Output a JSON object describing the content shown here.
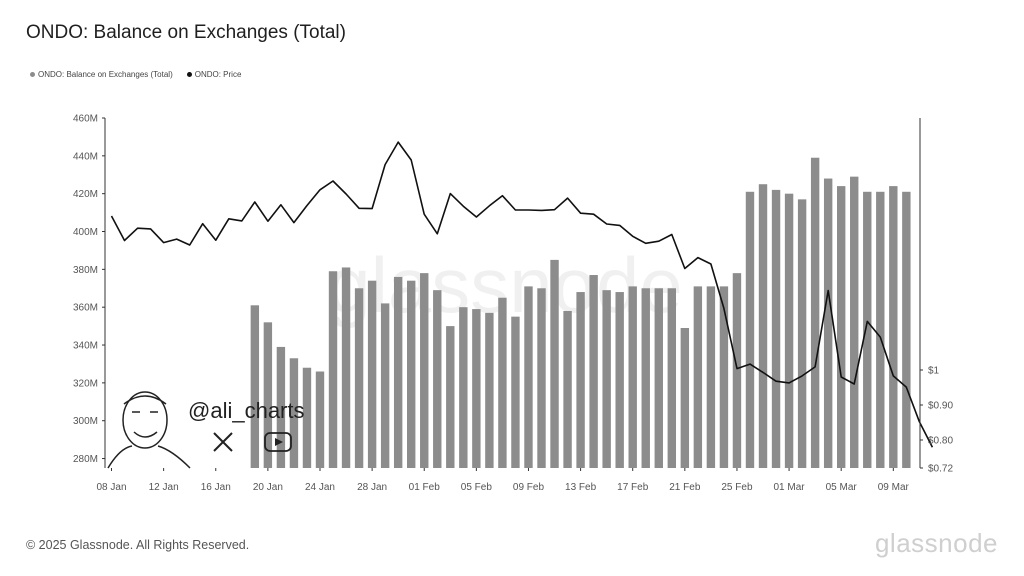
{
  "title": "ONDO: Balance on Exchanges (Total)",
  "legend": [
    {
      "label": "ONDO: Balance on Exchanges (Total)",
      "color": "#8c8c8c"
    },
    {
      "label": "ONDO: Price",
      "color": "#111111"
    }
  ],
  "watermark": "glassnode",
  "overlay": {
    "handle": "@ali_charts",
    "icons": [
      "x-logo-icon",
      "youtube-icon",
      "avatar-cartoon"
    ]
  },
  "footer": {
    "copyright": "© 2025 Glassnode. All Rights Reserved.",
    "brand": "glassnode"
  },
  "chart_data": {
    "type": "bar",
    "x_tick_labels": [
      "08 Jan",
      "12 Jan",
      "16 Jan",
      "20 Jan",
      "24 Jan",
      "28 Jan",
      "01 Feb",
      "05 Feb",
      "09 Feb",
      "13 Feb",
      "17 Feb",
      "21 Feb",
      "25 Feb",
      "01 Mar",
      "05 Mar",
      "09 Mar"
    ],
    "left_axis": {
      "ticks": [
        "280M",
        "300M",
        "320M",
        "340M",
        "360M",
        "380M",
        "400M",
        "420M",
        "440M",
        "460M"
      ],
      "range": [
        275,
        460
      ]
    },
    "right_axis": {
      "ticks": [
        "$0.72",
        "$0.80",
        "$0.90",
        "$1"
      ],
      "range": [
        0.72,
        1.72
      ]
    },
    "series": [
      {
        "name": "ONDO: Balance on Exchanges (Total)",
        "kind": "bar",
        "color": "#8c8c8c",
        "start_day": 19,
        "values": [
          361,
          352,
          339,
          333,
          328,
          326,
          379,
          381,
          370,
          374,
          362,
          376,
          374,
          378,
          369,
          350,
          360,
          359,
          357,
          365,
          355,
          371,
          370,
          385,
          358,
          368,
          377,
          369,
          368,
          371,
          370,
          370,
          370,
          349,
          371,
          371,
          371,
          378,
          421,
          425,
          422,
          420,
          417,
          439,
          428,
          424,
          429,
          421,
          421,
          424,
          421
        ]
      },
      {
        "name": "ONDO: Price",
        "kind": "line",
        "color": "#111111",
        "start_day": 8,
        "values": [
          1.44,
          1.37,
          1.405,
          1.403,
          1.364,
          1.374,
          1.357,
          1.418,
          1.371,
          1.432,
          1.426,
          1.48,
          1.425,
          1.472,
          1.421,
          1.47,
          1.515,
          1.54,
          1.503,
          1.462,
          1.461,
          1.587,
          1.651,
          1.6,
          1.445,
          1.389,
          1.504,
          1.468,
          1.437,
          1.469,
          1.498,
          1.457,
          1.457,
          1.456,
          1.458,
          1.491,
          1.448,
          1.445,
          1.417,
          1.413,
          1.382,
          1.362,
          1.368,
          1.387,
          1.29,
          1.321,
          1.303,
          1.176,
          1.004,
          1.017,
          0.993,
          0.968,
          0.963,
          0.983,
          1.009,
          1.227,
          0.98,
          0.96,
          1.139,
          1.094,
          0.983,
          0.951,
          0.852,
          0.779
        ]
      }
    ]
  }
}
